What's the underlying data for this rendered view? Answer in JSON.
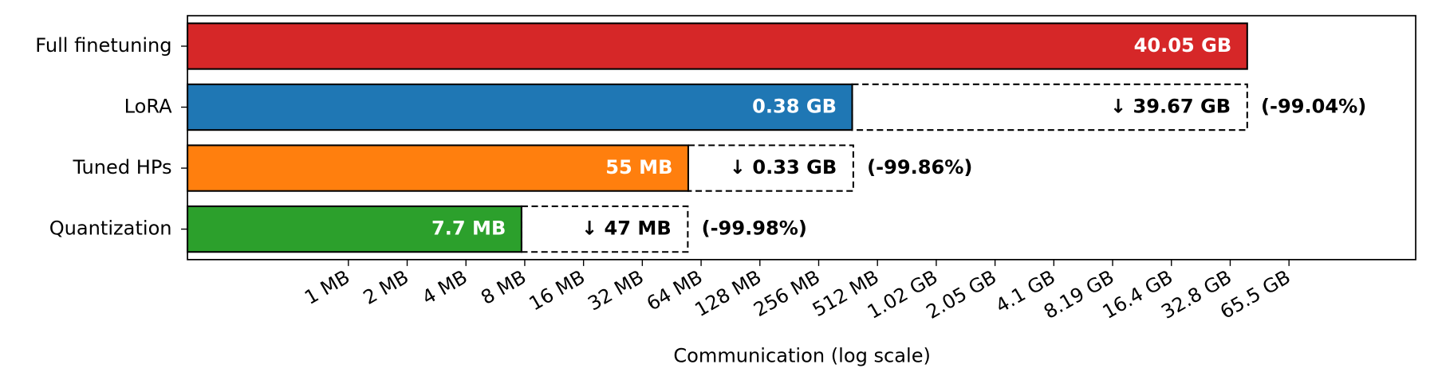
{
  "chart_data": {
    "type": "bar",
    "orientation": "horizontal",
    "xlabel": "Communication (log scale)",
    "xscale": "log",
    "categories": [
      "Full finetuning",
      "LoRA",
      "Tuned HPs",
      "Quantization"
    ],
    "values": [
      40050000000,
      380000000,
      55000000,
      7700000
    ],
    "value_labels": [
      "40.05 GB",
      "0.38 GB",
      "55 MB",
      "7.7 MB"
    ],
    "colors": [
      "#d62728",
      "#1f77b4",
      "#ff7f0e",
      "#2ca02c"
    ],
    "reductions": {
      "values": [
        null,
        39670000000,
        330000000,
        47000000
      ],
      "value_labels": [
        null,
        "↓ 39.67 GB",
        "↓ 0.33 GB",
        "↓ 47 MB"
      ],
      "percent_labels": [
        null,
        "(-99.04%)",
        "(-99.86%)",
        "(-99.98%)"
      ]
    },
    "xlim": [
      150000,
      292000000000
    ],
    "xticks": [
      {
        "value": 1000000,
        "label": "1 MB"
      },
      {
        "value": 2000000,
        "label": "2 MB"
      },
      {
        "value": 4000000,
        "label": "4 MB"
      },
      {
        "value": 8000000,
        "label": "8 MB"
      },
      {
        "value": 16000000,
        "label": "16 MB"
      },
      {
        "value": 32000000,
        "label": "32 MB"
      },
      {
        "value": 64000000,
        "label": "64 MB"
      },
      {
        "value": 128000000,
        "label": "128 MB"
      },
      {
        "value": 256000000,
        "label": "256 MB"
      },
      {
        "value": 512000000,
        "label": "512 MB"
      },
      {
        "value": 1024000000,
        "label": "1.02 GB"
      },
      {
        "value": 2048000000,
        "label": "2.05 GB"
      },
      {
        "value": 4096000000,
        "label": "4.1 GB"
      },
      {
        "value": 8192000000,
        "label": "8.19 GB"
      },
      {
        "value": 16384000000,
        "label": "16.4 GB"
      },
      {
        "value": 32768000000,
        "label": "32.8 GB"
      },
      {
        "value": 65536000000,
        "label": "65.5 GB"
      }
    ]
  }
}
